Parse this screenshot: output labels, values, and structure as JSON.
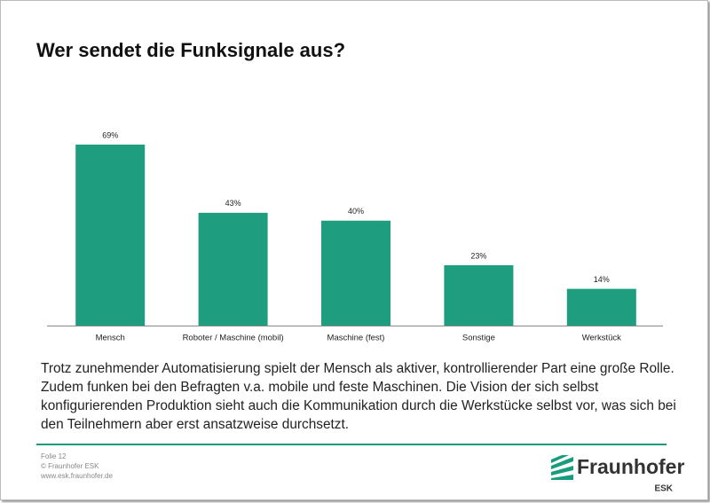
{
  "chart_data": {
    "type": "bar",
    "title": "Wer sendet die Funksignale aus?",
    "categories": [
      "Mensch",
      "Roboter / Maschine (mobil)",
      "Maschine (fest)",
      "Sonstige",
      "Werkstück"
    ],
    "values": [
      69,
      43,
      40,
      23,
      14
    ],
    "value_labels": [
      "69%",
      "43%",
      "40%",
      "23%",
      "14%"
    ],
    "color": "#1e9e7f"
  },
  "text": "Trotz zunehmender Automatisierung spielt der Mensch als aktiver, kontrollierender Part eine große Rolle. Zudem funken bei den Befragten v.a. mobile und feste Maschinen. Die Vision der sich selbst konfigurierenden Produktion sieht auch die Kommunikation durch die Werkstücke selbst vor, was sich bei den Teilnehmern aber erst ansatzweise durchsetzt.",
  "footer": [
    "Folie 12",
    "© Fraunhofer ESK",
    "www.esk.fraunhofer.de"
  ],
  "logo": {
    "name": "Fraunhofer",
    "unit": "ESK"
  }
}
